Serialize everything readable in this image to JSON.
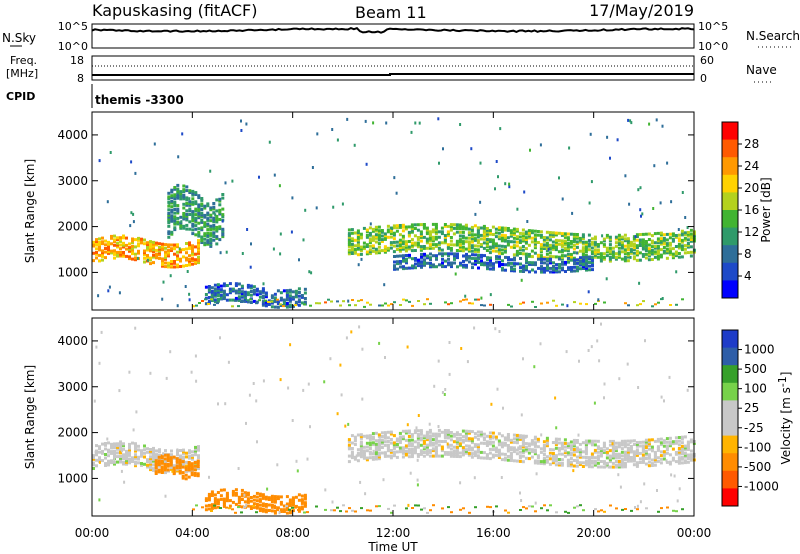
{
  "header": {
    "station": "Kapuskasing (fitACF)",
    "beam": "Beam 11",
    "date": "17/May/2019"
  },
  "panels": {
    "nsky": {
      "left_label": "N.Sky",
      "left_ticks": [
        "10^5",
        "10^0"
      ],
      "right_label": "N.Search",
      "right_ticks": [
        "10^5",
        "10^0"
      ]
    },
    "freq": {
      "left_label_1": "Freq.",
      "left_label_2": "[MHz]",
      "left_ticks": [
        "18",
        "8"
      ],
      "right_label": "Nave",
      "right_ticks": [
        "60",
        "0"
      ],
      "cpid_label": "CPID",
      "cpid_text": "themis -3300"
    }
  },
  "colorbars": {
    "power": {
      "label": "Power [dB]",
      "ticks": [
        "28",
        "24",
        "20",
        "16",
        "12",
        "8",
        "4"
      ],
      "colors": [
        "#ff0000",
        "#ff5a00",
        "#ff9900",
        "#ffd200",
        "#b4d21e",
        "#41b432",
        "#2f9a6a",
        "#2e6e99",
        "#1e4ac8",
        "#0000ff"
      ]
    },
    "velocity": {
      "label": "Velocity [m s",
      "label_sup": "-1",
      "label_end": "]",
      "ticks": [
        "1000",
        "500",
        "100",
        "25",
        "-25",
        "-100",
        "-500",
        "-1000"
      ],
      "colors": [
        "#1e3cc8",
        "#2e5ea8",
        "#36a02a",
        "#77d24a",
        "#c8c8c8",
        "#c8c8c8",
        "#ffb400",
        "#ff8c00",
        "#ff5a00",
        "#ff0000"
      ]
    }
  },
  "chart_data": [
    {
      "type": "heatmap",
      "title": "",
      "xlabel": "Time UT",
      "ylabel": "Slant Range [km]",
      "x_ticks": [
        "00:00",
        "04:00",
        "08:00",
        "12:00",
        "16:00",
        "20:00",
        "00:00"
      ],
      "y_ticks": [
        "1000",
        "2000",
        "3000",
        "4000"
      ],
      "xlim_hours": [
        0,
        24
      ],
      "ylim_km": [
        180,
        4500
      ],
      "colorbar": "Power [dB]",
      "echo_regions": [
        {
          "t_start": 0.0,
          "t_end": 4.2,
          "range_center_km": 1500,
          "range_width_km": 250,
          "power_db": 22
        },
        {
          "t_start": 3.0,
          "t_end": 5.2,
          "range_center_km": 2300,
          "range_width_km": 500,
          "power_db": 10
        },
        {
          "t_start": 4.5,
          "t_end": 8.5,
          "range_center_km": 550,
          "range_width_km": 200,
          "power_db": 6
        },
        {
          "t_start": 10.2,
          "t_end": 24.0,
          "range_center_km": 1700,
          "range_width_km": 300,
          "power_db": 14
        },
        {
          "t_start": 12.0,
          "t_end": 20.0,
          "range_center_km": 1250,
          "range_width_km": 150,
          "power_db": 6
        }
      ]
    },
    {
      "type": "heatmap",
      "title": "",
      "xlabel": "Time UT",
      "ylabel": "Slant Range [km]",
      "x_ticks": [
        "00:00",
        "04:00",
        "08:00",
        "12:00",
        "16:00",
        "20:00",
        "00:00"
      ],
      "y_ticks": [
        "1000",
        "2000",
        "3000",
        "4000"
      ],
      "xlim_hours": [
        0,
        24
      ],
      "ylim_km": [
        180,
        4500
      ],
      "colorbar": "Velocity [m s-1]",
      "echo_regions": [
        {
          "t_start": 0.0,
          "t_end": 4.2,
          "range_center_km": 1500,
          "range_width_km": 250,
          "velocity_ms": 0
        },
        {
          "t_start": 2.5,
          "t_end": 4.2,
          "range_center_km": 1300,
          "range_width_km": 200,
          "velocity_ms": -200
        },
        {
          "t_start": 4.5,
          "t_end": 8.5,
          "range_center_km": 550,
          "range_width_km": 200,
          "velocity_ms": -150
        },
        {
          "t_start": 10.2,
          "t_end": 24.0,
          "range_center_km": 1700,
          "range_width_km": 300,
          "velocity_ms": 0
        }
      ]
    }
  ]
}
